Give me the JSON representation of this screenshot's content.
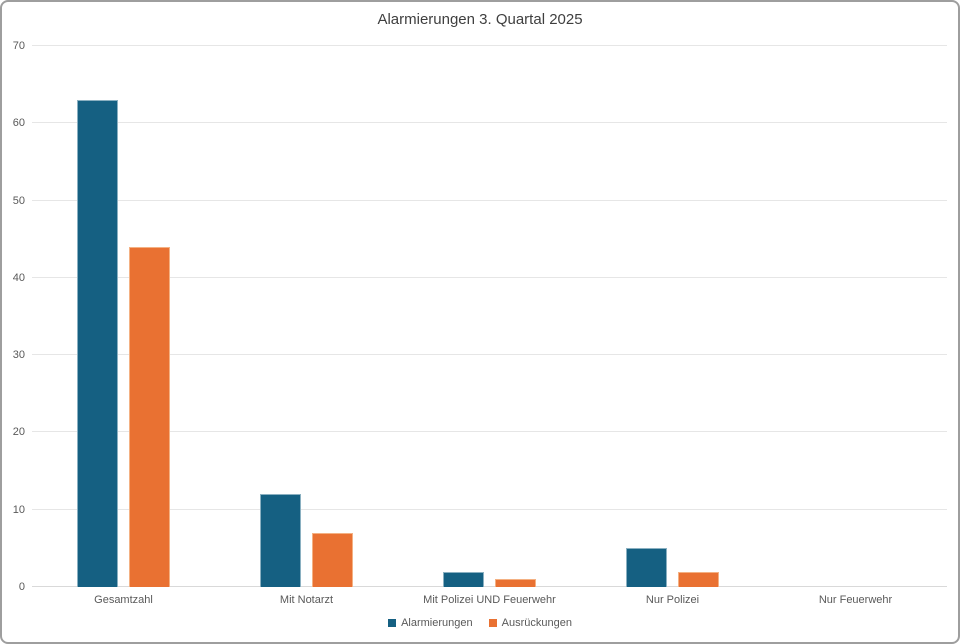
{
  "chart_data": {
    "type": "bar",
    "title": "Alarmierungen 3. Quartal 2025",
    "xlabel": "",
    "ylabel": "",
    "ylim": [
      0,
      70
    ],
    "ytick_step": 10,
    "grid": true,
    "legend_position": "bottom",
    "categories": [
      "Gesamtzahl",
      "Mit Notarzt",
      "Mit Polizei UND Feuerwehr",
      "Nur Polizei",
      "Nur Feuerwehr"
    ],
    "series": [
      {
        "name": "Alarmierungen",
        "color": "#156082",
        "border_color": "#8ab0c1",
        "values": [
          63,
          12,
          2,
          5,
          0
        ]
      },
      {
        "name": "Ausrückungen",
        "color": "#e97132",
        "border_color": "#f4b183",
        "values": [
          44,
          7,
          1,
          2,
          0
        ]
      }
    ]
  },
  "colors": {
    "gridline": "#e6e6e6",
    "axis_line": "#d9d9d9",
    "title_text": "#3f3f3f",
    "tick_text": "#595959",
    "frame_border": "#9e9e9e",
    "background": "#ffffff"
  }
}
